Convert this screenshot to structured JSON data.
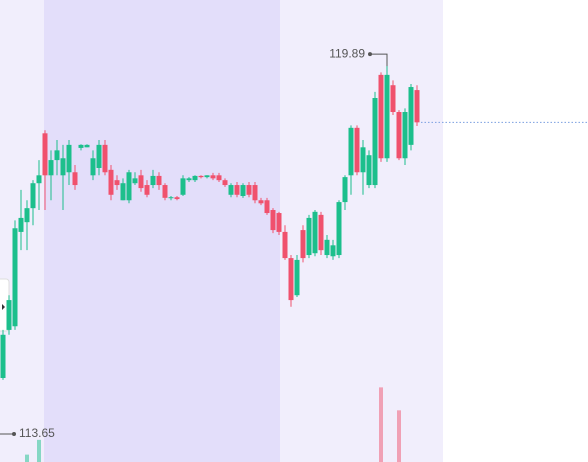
{
  "chart_data": {
    "type": "candlestick",
    "up_color": "#1cbf8c",
    "down_color": "#f0516d",
    "ylim": [
      113.19,
      120.78
    ],
    "annotations": [
      {
        "value": 119.89
      },
      {
        "value": 113.65
      }
    ],
    "open": [
      114.57,
      115.36,
      115.42,
      116.97,
      117.13,
      117.36,
      117.77,
      118.59,
      117.9,
      118.15,
      117.9,
      117.95,
      117.95,
      118.35,
      118.36,
      117.9,
      118.02,
      118.4,
      117.99,
      117.82,
      117.49,
      117.49,
      117.77,
      117.9,
      117.74,
      117.74,
      117.89,
      117.74,
      117.53,
      117.54,
      117.58,
      117.82,
      117.82,
      117.89,
      117.87,
      117.9,
      117.9,
      117.82,
      117.58,
      117.74,
      117.56,
      117.74,
      117.74,
      117.49,
      117.49,
      117.33,
      117.28,
      116.97,
      116.54,
      115.93,
      117.0,
      116.59,
      116.62,
      117.25,
      116.59,
      116.57,
      116.59,
      117.46,
      117.9,
      118.68,
      117.95,
      117.74,
      117.74,
      119.55,
      118.18,
      119.38,
      118.94,
      118.18,
      118.4,
      119.3
    ],
    "high": [
      115.36,
      115.93,
      117.16,
      117.66,
      117.49,
      117.82,
      118.15,
      118.64,
      118.31,
      118.48,
      118.4,
      118.48,
      118.07,
      118.41,
      118.41,
      118.31,
      118.48,
      118.48,
      118.07,
      117.9,
      117.85,
      117.99,
      117.95,
      117.99,
      117.82,
      117.99,
      117.95,
      117.77,
      117.56,
      117.56,
      117.9,
      117.87,
      117.9,
      117.9,
      117.9,
      117.94,
      117.94,
      117.85,
      117.77,
      117.79,
      117.77,
      117.79,
      117.79,
      117.53,
      117.53,
      117.36,
      117.3,
      117.08,
      116.59,
      116.59,
      117.08,
      117.25,
      117.33,
      117.3,
      116.92,
      116.84,
      117.49,
      117.9,
      118.72,
      118.72,
      118.48,
      118.31,
      119.27,
      119.59,
      119.89,
      119.46,
      118.97,
      119.0,
      119.4,
      119.38
    ],
    "low": [
      114.54,
      115.28,
      115.36,
      116.67,
      116.67,
      117.08,
      117.33,
      117.33,
      117.49,
      117.9,
      117.33,
      117.74,
      117.66,
      118.31,
      118.36,
      117.82,
      117.9,
      117.9,
      117.49,
      117.66,
      117.49,
      117.44,
      117.74,
      117.63,
      117.54,
      117.69,
      117.66,
      117.49,
      117.49,
      117.49,
      117.56,
      117.79,
      117.79,
      117.85,
      117.85,
      117.82,
      117.79,
      117.71,
      117.54,
      117.54,
      117.53,
      117.54,
      117.44,
      117.41,
      117.25,
      116.95,
      116.92,
      116.51,
      115.74,
      115.9,
      116.47,
      116.54,
      116.57,
      116.59,
      116.54,
      116.51,
      116.54,
      117.33,
      117.58,
      117.9,
      117.58,
      117.69,
      117.69,
      118.12,
      118.12,
      118.89,
      118.15,
      118.07,
      118.31,
      118.71
    ],
    "close": [
      115.28,
      115.85,
      117.03,
      117.2,
      117.36,
      117.77,
      117.9,
      117.9,
      118.15,
      118.31,
      118.18,
      118.4,
      117.74,
      118.4,
      118.4,
      118.18,
      118.4,
      117.95,
      117.58,
      117.74,
      117.77,
      117.95,
      117.85,
      117.69,
      117.58,
      117.89,
      117.74,
      117.53,
      117.54,
      117.51,
      117.85,
      117.85,
      117.89,
      117.87,
      117.9,
      117.85,
      117.82,
      117.74,
      117.74,
      117.58,
      117.74,
      117.58,
      117.49,
      117.44,
      117.28,
      117.0,
      116.97,
      116.54,
      115.85,
      116.51,
      116.54,
      117.2,
      117.3,
      116.67,
      116.84,
      116.75,
      117.46,
      117.87,
      118.68,
      117.95,
      118.36,
      118.23,
      119.17,
      118.18,
      119.55,
      118.94,
      118.18,
      118.94,
      119.35,
      118.77
    ],
    "volume_lim": [
      0,
      100
    ],
    "volume": [
      null,
      null,
      null,
      null,
      9,
      null,
      27,
      null,
      null,
      null,
      null,
      null,
      null,
      null,
      null,
      null,
      null,
      null,
      null,
      null,
      null,
      null,
      null,
      null,
      null,
      null,
      null,
      null,
      null,
      null,
      null,
      null,
      null,
      null,
      null,
      null,
      null,
      null,
      null,
      null,
      null,
      null,
      null,
      null,
      null,
      null,
      null,
      null,
      null,
      null,
      null,
      null,
      null,
      null,
      null,
      null,
      null,
      null,
      null,
      null,
      null,
      null,
      null,
      91,
      null,
      null,
      63,
      null,
      null,
      null
    ]
  }
}
